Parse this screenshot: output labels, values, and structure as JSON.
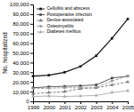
{
  "chart_data": {
    "type": "line",
    "ylabel": "No. hospitalized",
    "x": [
      1999,
      2000,
      2001,
      2002,
      2003,
      2004,
      2005
    ],
    "xlim": [
      1999,
      2005
    ],
    "xticks": [
      1999,
      2000,
      2001,
      2002,
      2003,
      2004,
      2005
    ],
    "ylim": [
      0,
      100000
    ],
    "yticks": [
      0,
      {
        "value": 10000,
        "label": "10,000"
      },
      {
        "value": 20000,
        "label": "20,000"
      },
      {
        "value": 30000,
        "label": "30,000"
      },
      {
        "value": 40000,
        "label": "40,000"
      },
      {
        "value": 50000,
        "label": "50,000"
      },
      {
        "value": 60000,
        "label": "60,000"
      },
      {
        "value": 70000,
        "label": "70,000"
      },
      {
        "value": 80000,
        "label": "80,000"
      },
      {
        "value": 90000,
        "label": "90,000"
      },
      {
        "value": 100000,
        "label": "100,000"
      }
    ],
    "grid": false,
    "legend": "upper left",
    "series": [
      {
        "name": "Cellulitis and abscess",
        "color": "#111111",
        "line_style": "solid",
        "marker": "square",
        "values": [
          26000,
          27000,
          30000,
          36000,
          47000,
          65000,
          85000
        ]
      },
      {
        "name": "Postoperative infection",
        "color": "#444444",
        "line_style": "solid",
        "marker": "square",
        "values": [
          14000,
          15000,
          15500,
          16000,
          17000,
          24000,
          26000
        ]
      },
      {
        "name": "Device-associated",
        "color": "#777777",
        "line_style": "dashed",
        "marker": "triangle",
        "values": [
          8000,
          9000,
          10000,
          13000,
          14000,
          17000,
          20000
        ]
      },
      {
        "name": "Osteomyelitis",
        "color": "#999999",
        "line_style": "dashed",
        "marker": "circle",
        "values": [
          13000,
          13500,
          14000,
          14000,
          14500,
          21000,
          26000
        ]
      },
      {
        "name": "Diabetes mellitus",
        "color": "#aaaaaa",
        "line_style": "solid",
        "marker": "triangle",
        "values": [
          5000,
          5500,
          5000,
          5500,
          6000,
          9000,
          11000
        ]
      }
    ]
  }
}
